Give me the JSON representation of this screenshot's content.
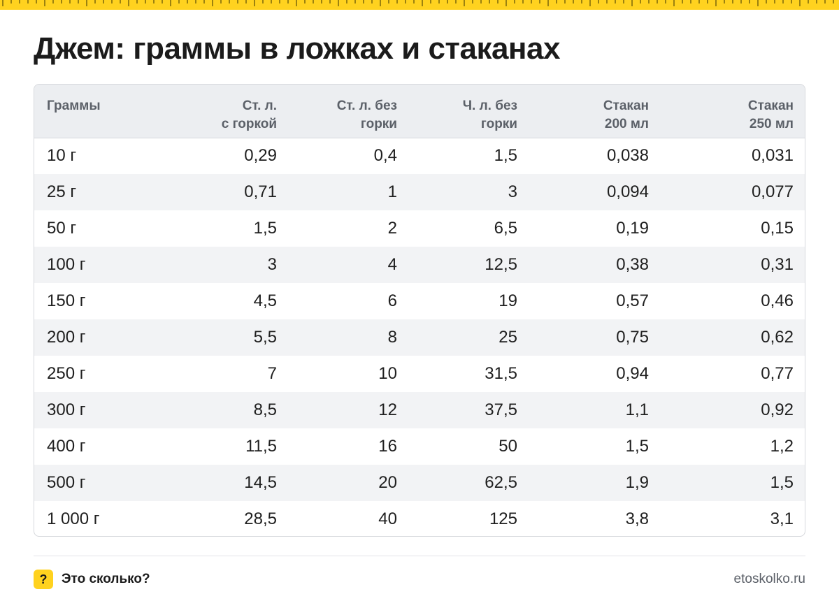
{
  "title": "Джем: граммы в ложках и стаканах",
  "table": {
    "headers": [
      {
        "line1": "Граммы",
        "line2": ""
      },
      {
        "line1": "Ст. л.",
        "line2": "с горкой"
      },
      {
        "line1": "Ст. л. без",
        "line2": "горки"
      },
      {
        "line1": "Ч. л. без",
        "line2": "горки"
      },
      {
        "line1": "Стакан",
        "line2": "200 мл"
      },
      {
        "line1": "Стакан",
        "line2": "250 мл"
      }
    ],
    "rows": [
      [
        "10 г",
        "0,29",
        "0,4",
        "1,5",
        "0,038",
        "0,031"
      ],
      [
        "25 г",
        "0,71",
        "1",
        "3",
        "0,094",
        "0,077"
      ],
      [
        "50 г",
        "1,5",
        "2",
        "6,5",
        "0,19",
        "0,15"
      ],
      [
        "100 г",
        "3",
        "4",
        "12,5",
        "0,38",
        "0,31"
      ],
      [
        "150 г",
        "4,5",
        "6",
        "19",
        "0,57",
        "0,46"
      ],
      [
        "200 г",
        "5,5",
        "8",
        "25",
        "0,75",
        "0,62"
      ],
      [
        "250 г",
        "7",
        "10",
        "31,5",
        "0,94",
        "0,77"
      ],
      [
        "300 г",
        "8,5",
        "12",
        "37,5",
        "1,1",
        "0,92"
      ],
      [
        "400 г",
        "11,5",
        "16",
        "50",
        "1,5",
        "1,2"
      ],
      [
        "500 г",
        "14,5",
        "20",
        "62,5",
        "1,9",
        "1,5"
      ],
      [
        "1 000 г",
        "28,5",
        "40",
        "125",
        "3,8",
        "3,1"
      ]
    ]
  },
  "footer": {
    "badge": "?",
    "brand": "Это сколько?",
    "site": "etoskolko.ru"
  },
  "colors": {
    "accent": "#ffd21f",
    "header_bg": "#eceef1",
    "stripe_bg": "#f2f3f5"
  }
}
